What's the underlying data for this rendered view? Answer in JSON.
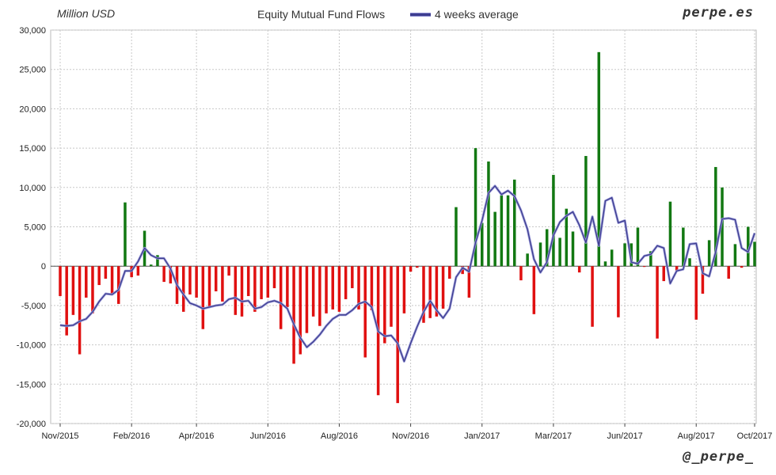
{
  "header": {
    "unit_label": "Million USD",
    "title": "Equity Mutual Fund Flows",
    "legend_label": "4 weeks average",
    "brand_top": "perpe.es",
    "brand_bottom": "@_perpe_"
  },
  "colors": {
    "positive_bar": "#127812",
    "negative_bar": "#e01010",
    "average_line": "#3d3d8f",
    "grid": "#c8c8c8",
    "zero_line": "#555555"
  },
  "chart_data": {
    "type": "bar",
    "title": "Equity Mutual Fund Flows",
    "ylabel": "Million USD",
    "ylim": [
      -20000,
      30000
    ],
    "y_ticks": [
      "-20,000",
      "-15,000",
      "-10,000",
      "-5,000",
      "0",
      "5,000",
      "10,000",
      "15,000",
      "20,000",
      "25,000",
      "30,000"
    ],
    "x_ticks": [
      "Nov/2015",
      "Feb/2016",
      "Apr/2016",
      "Jun/2016",
      "Aug/2016",
      "Nov/2016",
      "Jan/2017",
      "Mar/2017",
      "Jun/2017",
      "Aug/2017",
      "Oct/2017"
    ],
    "grid": true,
    "series": [
      {
        "kind": "bar",
        "values": [
          -3800,
          -8800,
          -6200,
          -11200,
          -4000,
          -6000,
          -2400,
          -1600,
          -3600,
          -4800,
          8100,
          -1400,
          -1200,
          4500,
          200,
          1400,
          -2000,
          -2200,
          -4800,
          -5800,
          -3600,
          -4000,
          -8000,
          -5200,
          -3200,
          -4500,
          -1200,
          -6200,
          -6400,
          -3800,
          -5800,
          -4200,
          -4000,
          -2800,
          -8000,
          -5200,
          -12400,
          -11200,
          -8500,
          -6400,
          -7600,
          -6000,
          -5500,
          -5800,
          -4200,
          -2800,
          -5500,
          -11600,
          -5600,
          -16400,
          -9800,
          -7700,
          -17400,
          -6000,
          -700,
          -200,
          -7200,
          -6600,
          -6400,
          -5400,
          -1600,
          7500,
          -1000,
          -4000,
          15000,
          5500,
          13300,
          6900,
          9000,
          9000,
          11000,
          -1800,
          1600,
          -6100,
          3000,
          4700,
          11600,
          3600,
          7300,
          4400,
          -800,
          14000,
          -7700,
          27200,
          600,
          2100,
          -6500,
          2900,
          2900,
          4900,
          -100,
          1900,
          -9200,
          -1900,
          8200,
          -600,
          4900,
          1000,
          -6800,
          -3500,
          3300,
          12600,
          10000,
          -1600,
          2800,
          -200,
          5000,
          3100
        ]
      },
      {
        "kind": "line",
        "name": "4 weeks average",
        "values": [
          -7500,
          -7600,
          -7500,
          -7000,
          -6700,
          -5800,
          -4500,
          -3500,
          -3600,
          -3000,
          -600,
          -600,
          600,
          2300,
          1400,
          1000,
          1000,
          -300,
          -2400,
          -3600,
          -4700,
          -5000,
          -5400,
          -5200,
          -5000,
          -4900,
          -4200,
          -4000,
          -4500,
          -4400,
          -5400,
          -5200,
          -4600,
          -4400,
          -4700,
          -5400,
          -7400,
          -9100,
          -10300,
          -9600,
          -8700,
          -7600,
          -6700,
          -6200,
          -6200,
          -5600,
          -4800,
          -4500,
          -5200,
          -8300,
          -8900,
          -8800,
          -9800,
          -12100,
          -9800,
          -7700,
          -5800,
          -4400,
          -5600,
          -6600,
          -5400,
          -1400,
          -200,
          -700,
          3000,
          5800,
          9300,
          10200,
          9100,
          9600,
          8900,
          7100,
          4700,
          900,
          -800,
          500,
          3900,
          5600,
          6400,
          6900,
          5200,
          3000,
          6300,
          2600,
          8300,
          8700,
          5500,
          5800,
          500,
          300,
          1300,
          1500,
          2600,
          2300,
          -2200,
          -600,
          -400,
          2800,
          2900,
          -900,
          -1300,
          1800,
          6000,
          6100,
          5900,
          2300,
          1800,
          4200
        ]
      }
    ]
  }
}
